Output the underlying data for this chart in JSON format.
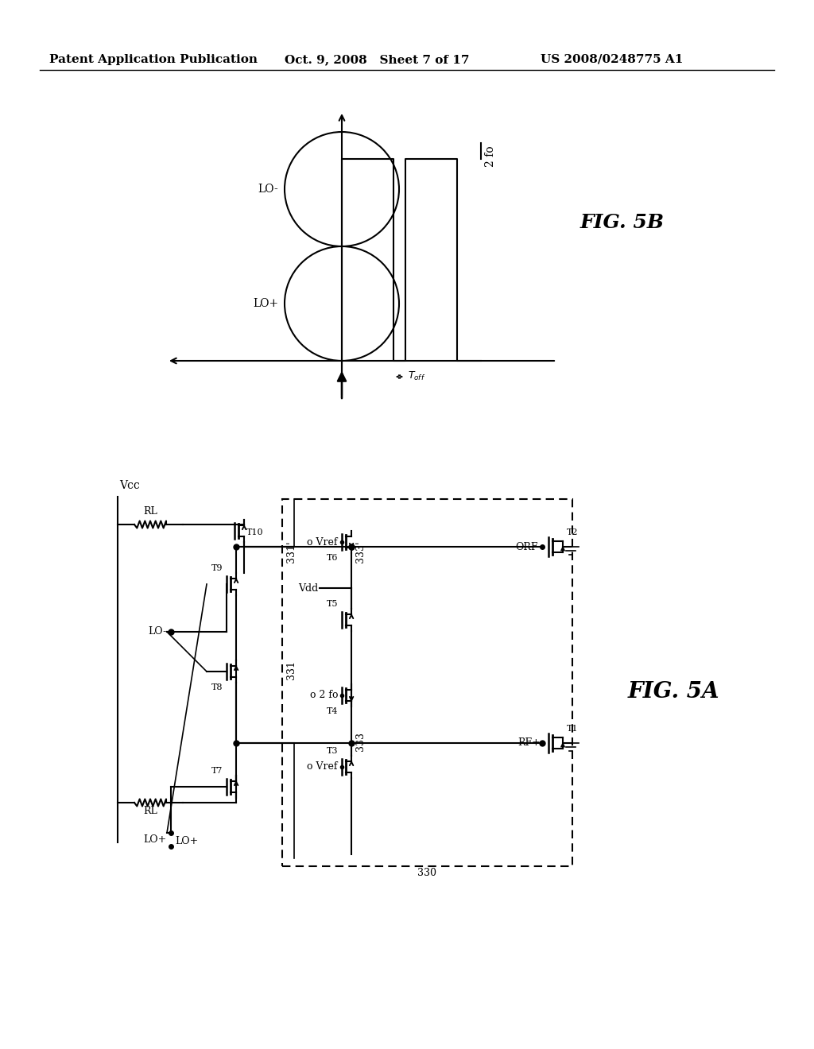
{
  "bg_color": "#ffffff",
  "header_left": "Patent Application Publication",
  "header_mid": "Oct. 9, 2008   Sheet 7 of 17",
  "header_right": "US 2008/0248775 A1",
  "fig5b_label": "FIG. 5B",
  "fig5a_label": "FIG. 5A"
}
